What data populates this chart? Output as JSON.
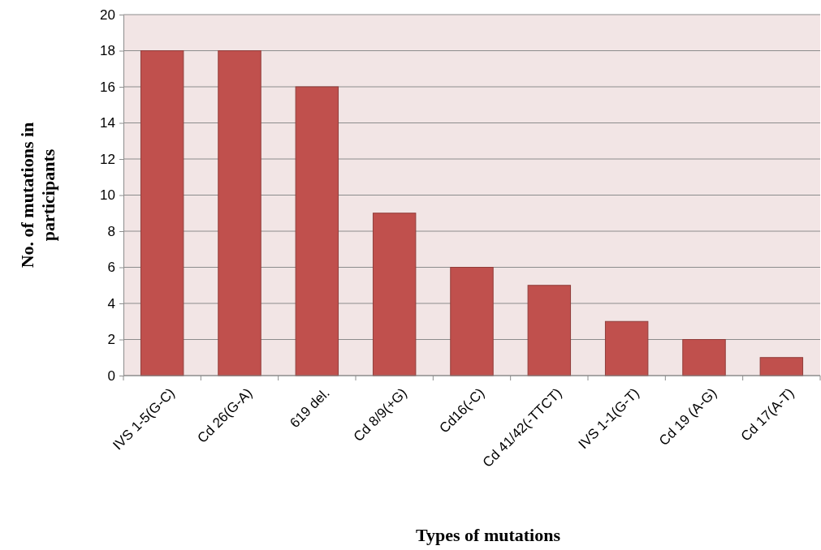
{
  "chart_data": {
    "type": "bar",
    "xlabel": "Types of mutations",
    "ylabel": "No. of mutations in participants",
    "categories": [
      "IVS 1-5(G-C)",
      "Cd 26(G-A)",
      "619 del.",
      "Cd 8/9(+G)",
      "Cd16(-C)",
      "Cd 41/42(-TTCT)",
      "IVS 1-1(G-T)",
      "Cd 19 (A-G)",
      "Cd 17(A-T)"
    ],
    "values": [
      18,
      18,
      16,
      9,
      6,
      5,
      3,
      2,
      1
    ],
    "color": "#c0504d",
    "ylim": [
      0,
      20
    ],
    "yticks": [
      0,
      2,
      4,
      6,
      8,
      10,
      12,
      14,
      16,
      18,
      20
    ],
    "grid": "y"
  }
}
